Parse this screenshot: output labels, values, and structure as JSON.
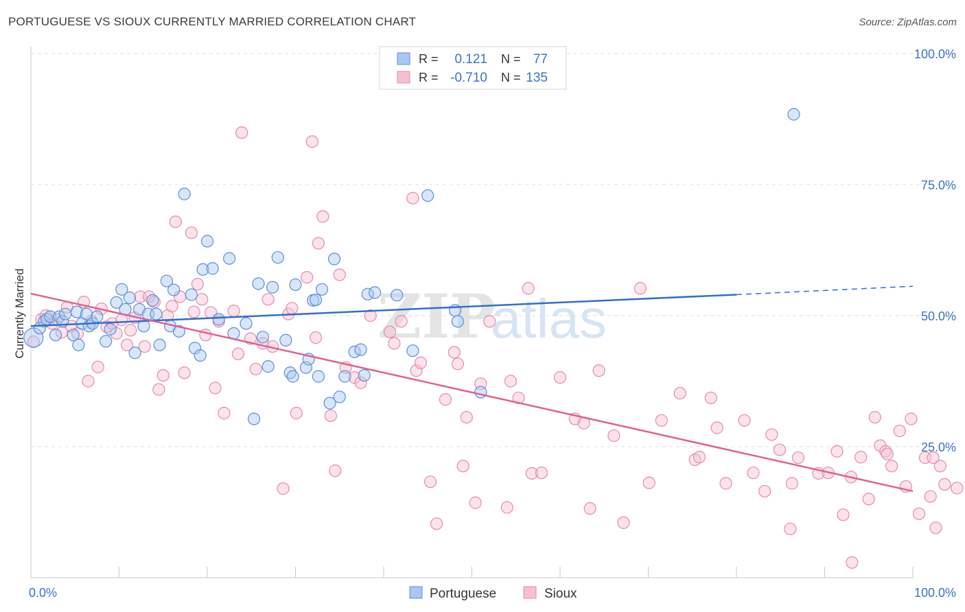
{
  "header": {
    "title": "PORTUGUESE VS SIOUX CURRENTLY MARRIED CORRELATION CHART",
    "source": "Source: ZipAtlas.com"
  },
  "watermark": {
    "zip": "ZIP",
    "atlas": "atlas"
  },
  "legend": {
    "r_label": "R =",
    "n_label": "N =",
    "rows": [
      {
        "name": "Portuguese",
        "r": "0.121",
        "n": "77"
      },
      {
        "name": "Sioux",
        "r": "-0.710",
        "n": "135"
      }
    ]
  },
  "colors": {
    "portuguese_fill": "#a8c8f0",
    "portuguese_stroke": "#5a8fd6",
    "portuguese_line": "#2f6fcc",
    "sioux_fill": "#f7c0d2",
    "sioux_stroke": "#e58aab",
    "sioux_line": "#e0608f",
    "axis_text": "#3b73c4",
    "grid": "#dedede"
  },
  "chart_data": {
    "type": "scatter",
    "title": "PORTUGUESE VS SIOUX CURRENTLY MARRIED CORRELATION CHART",
    "xlabel": "",
    "ylabel": "Currently Married",
    "xlim": [
      0,
      100
    ],
    "ylim": [
      0,
      100
    ],
    "x_tick_labels": [
      "0.0%",
      "100.0%"
    ],
    "y_ticks": [
      25,
      50,
      75,
      100
    ],
    "y_tick_labels": [
      "25.0%",
      "50.0%",
      "75.0%",
      "100.0%"
    ],
    "grid": true,
    "legend_position": "top-center",
    "series": [
      {
        "name": "Portuguese",
        "trend": {
          "x": [
            0,
            80
          ],
          "y": [
            48.0,
            54.0
          ],
          "extended_x": 100,
          "extended_y": 55.6
        },
        "points": [
          [
            0.3,
            45.8
          ],
          [
            1.5,
            48.9
          ],
          [
            1.8,
            49.3
          ],
          [
            2.2,
            49.8
          ],
          [
            2.8,
            46.3
          ],
          [
            3.2,
            49.8
          ],
          [
            3.6,
            48.9
          ],
          [
            3.9,
            50.3
          ],
          [
            4.8,
            46.3
          ],
          [
            5.2,
            50.7
          ],
          [
            5.4,
            44.4
          ],
          [
            5.8,
            48.5
          ],
          [
            6.3,
            50.3
          ],
          [
            6.6,
            48.0
          ],
          [
            7.0,
            48.5
          ],
          [
            7.5,
            49.8
          ],
          [
            8.5,
            45.1
          ],
          [
            9.0,
            47.4
          ],
          [
            9.7,
            52.5
          ],
          [
            10.3,
            55.0
          ],
          [
            10.7,
            51.2
          ],
          [
            11.2,
            53.4
          ],
          [
            11.8,
            42.9
          ],
          [
            12.3,
            51.2
          ],
          [
            12.8,
            48.0
          ],
          [
            13.3,
            50.3
          ],
          [
            13.8,
            52.9
          ],
          [
            14.2,
            50.3
          ],
          [
            14.6,
            44.4
          ],
          [
            15.4,
            56.6
          ],
          [
            15.8,
            48.0
          ],
          [
            16.2,
            54.9
          ],
          [
            16.8,
            47.0
          ],
          [
            17.4,
            73.2
          ],
          [
            18.2,
            54.0
          ],
          [
            18.6,
            43.8
          ],
          [
            19.2,
            42.4
          ],
          [
            19.5,
            58.8
          ],
          [
            20.0,
            64.2
          ],
          [
            20.6,
            59.0
          ],
          [
            21.3,
            49.3
          ],
          [
            22.5,
            60.9
          ],
          [
            23.0,
            46.6
          ],
          [
            24.4,
            48.5
          ],
          [
            25.3,
            30.3
          ],
          [
            25.8,
            56.1
          ],
          [
            26.3,
            45.9
          ],
          [
            26.9,
            40.3
          ],
          [
            27.4,
            55.4
          ],
          [
            28.0,
            61.1
          ],
          [
            28.9,
            45.3
          ],
          [
            29.4,
            39.1
          ],
          [
            29.7,
            38.4
          ],
          [
            30.0,
            55.9
          ],
          [
            31.2,
            40.1
          ],
          [
            31.5,
            41.7
          ],
          [
            32.0,
            52.9
          ],
          [
            32.3,
            53.0
          ],
          [
            32.6,
            38.4
          ],
          [
            33.0,
            55.0
          ],
          [
            33.9,
            33.3
          ],
          [
            34.4,
            60.8
          ],
          [
            35.0,
            34.5
          ],
          [
            35.6,
            38.4
          ],
          [
            36.7,
            43.1
          ],
          [
            37.4,
            43.5
          ],
          [
            37.8,
            38.6
          ],
          [
            38.2,
            54.1
          ],
          [
            39.0,
            54.4
          ],
          [
            41.5,
            53.9
          ],
          [
            43.3,
            43.3
          ],
          [
            45.0,
            72.9
          ],
          [
            48.1,
            51.0
          ],
          [
            48.4,
            48.9
          ],
          [
            51.0,
            35.4
          ],
          [
            86.5,
            88.4
          ],
          [
            1.0,
            47.6
          ]
        ]
      },
      {
        "name": "Sioux",
        "trend": {
          "x": [
            0,
            100
          ],
          "y": [
            54.2,
            16.5
          ]
        },
        "points": [
          [
            0.3,
            45.0
          ],
          [
            1.2,
            49.3
          ],
          [
            1.7,
            50.0
          ],
          [
            2.4,
            48.5
          ],
          [
            3.0,
            49.3
          ],
          [
            3.5,
            46.8
          ],
          [
            4.1,
            51.6
          ],
          [
            4.6,
            48.0
          ],
          [
            5.3,
            46.6
          ],
          [
            6.0,
            52.6
          ],
          [
            6.5,
            37.5
          ],
          [
            6.9,
            48.9
          ],
          [
            7.6,
            40.2
          ],
          [
            8.0,
            51.3
          ],
          [
            8.6,
            47.9
          ],
          [
            9.2,
            48.5
          ],
          [
            9.7,
            46.6
          ],
          [
            10.3,
            49.2
          ],
          [
            10.9,
            44.4
          ],
          [
            11.3,
            47.2
          ],
          [
            11.8,
            49.6
          ],
          [
            12.4,
            53.6
          ],
          [
            12.9,
            44.1
          ],
          [
            13.4,
            53.6
          ],
          [
            14.0,
            52.6
          ],
          [
            14.5,
            35.9
          ],
          [
            15.0,
            38.6
          ],
          [
            15.5,
            50.0
          ],
          [
            16.0,
            51.8
          ],
          [
            16.4,
            67.9
          ],
          [
            16.9,
            53.6
          ],
          [
            17.4,
            39.1
          ],
          [
            18.2,
            65.8
          ],
          [
            18.5,
            50.7
          ],
          [
            18.9,
            56.0
          ],
          [
            19.4,
            53.1
          ],
          [
            19.8,
            46.3
          ],
          [
            20.4,
            50.6
          ],
          [
            20.9,
            36.2
          ],
          [
            21.3,
            48.9
          ],
          [
            21.9,
            31.4
          ],
          [
            23.0,
            50.9
          ],
          [
            23.5,
            42.7
          ],
          [
            23.9,
            84.9
          ],
          [
            24.9,
            45.6
          ],
          [
            25.5,
            39.8
          ],
          [
            26.3,
            44.7
          ],
          [
            26.9,
            53.1
          ],
          [
            27.4,
            44.1
          ],
          [
            28.6,
            17.0
          ],
          [
            29.2,
            50.3
          ],
          [
            29.6,
            51.4
          ],
          [
            30.1,
            31.4
          ],
          [
            31.3,
            57.3
          ],
          [
            31.9,
            83.2
          ],
          [
            32.3,
            45.8
          ],
          [
            32.6,
            63.8
          ],
          [
            33.1,
            68.9
          ],
          [
            34.0,
            30.9
          ],
          [
            34.5,
            20.4
          ],
          [
            35.0,
            57.8
          ],
          [
            35.7,
            40.1
          ],
          [
            36.7,
            38.2
          ],
          [
            37.4,
            37.2
          ],
          [
            38.5,
            50.0
          ],
          [
            40.7,
            46.9
          ],
          [
            41.2,
            44.7
          ],
          [
            42.0,
            48.9
          ],
          [
            43.3,
            72.4
          ],
          [
            43.7,
            39.5
          ],
          [
            44.2,
            41.0
          ],
          [
            45.3,
            18.3
          ],
          [
            46.0,
            10.3
          ],
          [
            47.0,
            34.0
          ],
          [
            48.0,
            43.0
          ],
          [
            48.4,
            40.8
          ],
          [
            49.0,
            21.3
          ],
          [
            49.4,
            30.6
          ],
          [
            50.4,
            14.3
          ],
          [
            51.0,
            37.0
          ],
          [
            52.0,
            48.9
          ],
          [
            54.0,
            13.4
          ],
          [
            54.4,
            37.5
          ],
          [
            55.3,
            34.3
          ],
          [
            56.4,
            55.2
          ],
          [
            56.8,
            19.9
          ],
          [
            57.9,
            20.0
          ],
          [
            60.0,
            38.2
          ],
          [
            61.7,
            30.3
          ],
          [
            62.7,
            29.5
          ],
          [
            63.4,
            13.2
          ],
          [
            64.4,
            39.5
          ],
          [
            66.1,
            27.1
          ],
          [
            67.2,
            10.5
          ],
          [
            69.1,
            55.2
          ],
          [
            70.1,
            18.1
          ],
          [
            71.5,
            30.0
          ],
          [
            73.6,
            35.2
          ],
          [
            75.3,
            22.5
          ],
          [
            75.8,
            23.0
          ],
          [
            77.1,
            34.3
          ],
          [
            77.8,
            28.6
          ],
          [
            78.8,
            18.0
          ],
          [
            80.9,
            30.0
          ],
          [
            81.9,
            20.0
          ],
          [
            83.2,
            16.5
          ],
          [
            84.0,
            27.3
          ],
          [
            84.9,
            24.4
          ],
          [
            86.1,
            9.3
          ],
          [
            87.0,
            22.9
          ],
          [
            89.3,
            19.9
          ],
          [
            90.4,
            20.0
          ],
          [
            91.4,
            24.1
          ],
          [
            92.1,
            12.0
          ],
          [
            93.0,
            19.2
          ],
          [
            94.1,
            23.0
          ],
          [
            95.0,
            15.0
          ],
          [
            95.7,
            30.6
          ],
          [
            96.3,
            25.2
          ],
          [
            96.9,
            24.1
          ],
          [
            97.6,
            21.3
          ],
          [
            98.5,
            28.0
          ],
          [
            99.2,
            17.4
          ],
          [
            99.8,
            30.3
          ],
          [
            100.7,
            12.2
          ],
          [
            101.4,
            22.9
          ],
          [
            102.0,
            15.5
          ],
          [
            102.6,
            9.5
          ],
          [
            103.1,
            21.3
          ],
          [
            103.6,
            17.8
          ],
          [
            105.0,
            17.1
          ],
          [
            93.1,
            2.9
          ],
          [
            97.1,
            23.6
          ],
          [
            102.3,
            22.9
          ],
          [
            86.3,
            18.0
          ]
        ]
      }
    ]
  }
}
